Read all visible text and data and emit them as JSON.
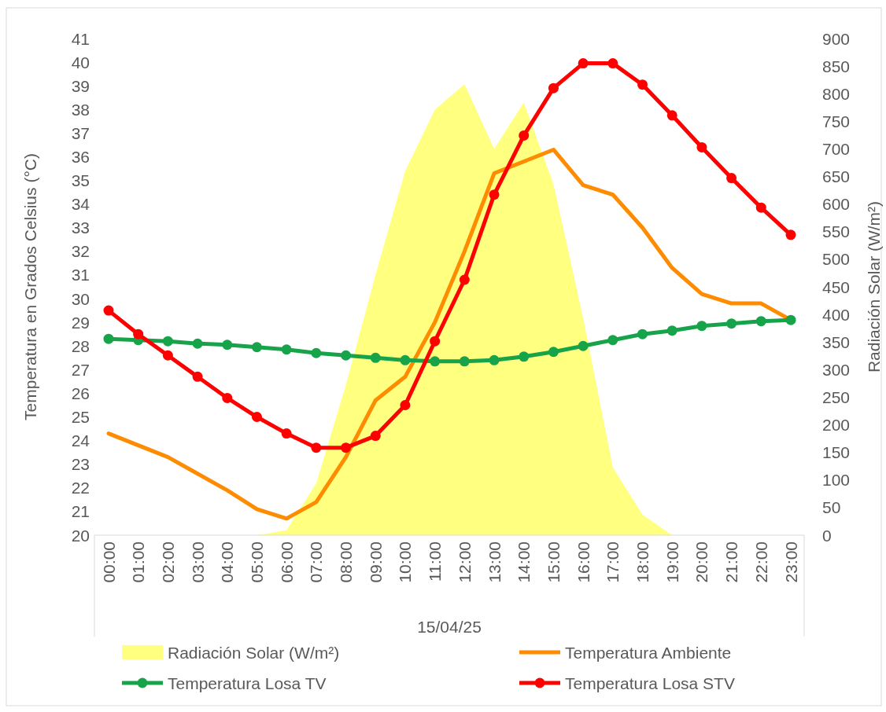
{
  "chart_data": {
    "type": "line",
    "xlabel": "15/04/25",
    "ylabel": "Temperatura en Grados Celsius (°C)",
    "y2label": "Radiación Solar (W/m²)",
    "categories": [
      "00:00",
      "01:00",
      "02:00",
      "03:00",
      "04:00",
      "05:00",
      "06:00",
      "07:00",
      "08:00",
      "09:00",
      "10:00",
      "11:00",
      "12:00",
      "13:00",
      "14:00",
      "15:00",
      "16:00",
      "17:00",
      "18:00",
      "19:00",
      "20:00",
      "21:00",
      "22:00",
      "23:00"
    ],
    "ylim": [
      20,
      41
    ],
    "yticks": [
      20,
      21,
      22,
      23,
      24,
      25,
      26,
      27,
      28,
      29,
      30,
      31,
      32,
      33,
      34,
      35,
      36,
      37,
      38,
      39,
      40,
      41
    ],
    "y2lim": [
      0,
      900
    ],
    "y2ticks": [
      0,
      50,
      100,
      150,
      200,
      250,
      300,
      350,
      400,
      450,
      500,
      550,
      600,
      650,
      700,
      750,
      800,
      850,
      900
    ],
    "grid": false,
    "legend": "bottom",
    "series": [
      {
        "name": "Radiación Solar (W/m²)",
        "type": "area",
        "axis": "y2",
        "color": "#ffff80",
        "values": [
          0,
          0,
          0,
          0,
          0,
          0,
          9,
          94,
          272,
          472,
          660,
          771,
          817,
          700,
          784,
          636,
          393,
          123,
          37,
          0,
          0,
          0,
          0,
          0
        ]
      },
      {
        "name": "Temperatura Ambiente",
        "marker": "none",
        "color": "#ff8c00",
        "values": [
          24.3,
          23.8,
          23.3,
          22.6,
          21.9,
          21.1,
          20.7,
          21.4,
          23.3,
          25.7,
          26.7,
          29.0,
          32.0,
          35.3,
          35.8,
          36.3,
          34.8,
          34.4,
          33.0,
          31.3,
          30.2,
          29.8,
          29.8,
          29.1
        ]
      },
      {
        "name": "Temperatura Losa TV",
        "marker": "circle",
        "color": "#17a34a",
        "values": [
          28.3,
          28.25,
          28.2,
          28.1,
          28.05,
          27.95,
          27.85,
          27.7,
          27.6,
          27.5,
          27.4,
          27.35,
          27.35,
          27.4,
          27.55,
          27.75,
          28.0,
          28.25,
          28.5,
          28.65,
          28.85,
          28.95,
          29.05,
          29.1
        ]
      },
      {
        "name": "Temperatura Losa STV",
        "marker": "circle",
        "color": "#ff0000",
        "values": [
          29.5,
          28.5,
          27.6,
          26.7,
          25.8,
          25.0,
          24.3,
          23.7,
          23.7,
          24.2,
          25.5,
          28.2,
          30.8,
          34.4,
          36.9,
          38.9,
          39.95,
          39.95,
          39.05,
          37.75,
          36.4,
          35.1,
          33.85,
          32.7
        ]
      }
    ]
  }
}
